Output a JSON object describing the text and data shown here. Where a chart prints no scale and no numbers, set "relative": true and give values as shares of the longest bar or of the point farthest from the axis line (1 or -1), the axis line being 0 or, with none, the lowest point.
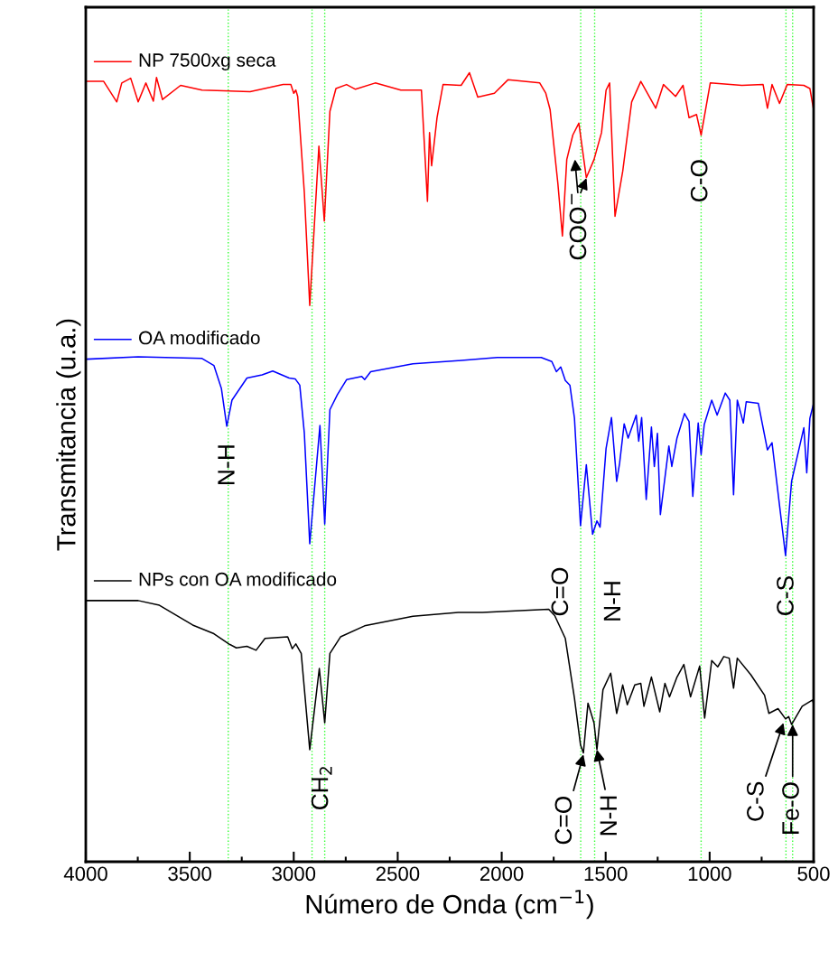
{
  "chart_data": {
    "type": "line",
    "relative": true,
    "xlabel": "Número de Onda (cm$^{−1}$)",
    "ylabel": "Transmitancia (u.a.)",
    "xlim": [
      4000,
      500
    ],
    "xticks": [
      4000,
      3500,
      3000,
      2500,
      2000,
      1500,
      1000,
      500
    ],
    "tick_labels": "x",
    "grid": false,
    "legend": "top left",
    "marker": "none",
    "line_style": "solid",
    "series": [
      {
        "name": "NP 7500xg seca",
        "color": "#ff0000",
        "x": [
          3994,
          3914,
          3851,
          3827,
          3784,
          3748,
          3711,
          3675,
          3660,
          3631,
          3544,
          3441,
          3210,
          3051,
          3014,
          3000,
          2990,
          2981,
          2949,
          2923,
          2879,
          2853,
          2826,
          2797,
          2746,
          2703,
          2608,
          2485,
          2386,
          2357,
          2347,
          2337,
          2311,
          2282,
          2195,
          2155,
          2115,
          2035,
          1970,
          1817,
          1788,
          1767,
          1730,
          1708,
          1687,
          1658,
          1629,
          1593,
          1556,
          1520,
          1498,
          1481,
          1455,
          1418,
          1375,
          1331,
          1259,
          1222,
          1164,
          1128,
          1099,
          1063,
          1041,
          997,
          845,
          743,
          722,
          700,
          664,
          627,
          547,
          518,
          500
        ],
        "values": [
          0.989,
          0.989,
          0.963,
          0.987,
          0.993,
          0.963,
          0.987,
          0.964,
          0.994,
          0.966,
          0.984,
          0.978,
          0.976,
          0.985,
          0.985,
          0.974,
          0.978,
          0.97,
          0.848,
          0.705,
          0.907,
          0.812,
          0.951,
          0.98,
          0.985,
          0.979,
          0.987,
          0.978,
          0.978,
          0.837,
          0.924,
          0.882,
          0.943,
          0.985,
          0.984,
          1.0,
          0.969,
          0.974,
          0.991,
          0.987,
          0.974,
          0.953,
          0.86,
          0.793,
          0.89,
          0.921,
          0.936,
          0.867,
          0.89,
          0.924,
          0.978,
          0.987,
          0.818,
          0.875,
          0.963,
          0.989,
          0.955,
          0.985,
          0.97,
          0.984,
          0.943,
          0.947,
          0.921,
          0.987,
          0.984,
          0.985,
          0.955,
          0.985,
          0.961,
          0.985,
          0.984,
          0.98,
          0.953
        ]
      },
      {
        "name": "OA modificado",
        "color": "#0000ff",
        "x": [
          3994,
          3748,
          3443,
          3384,
          3348,
          3322,
          3297,
          3225,
          3152,
          3101,
          3022,
          2993,
          2971,
          2949,
          2923,
          2874,
          2851,
          2826,
          2790,
          2746,
          2673,
          2659,
          2630,
          2427,
          2209,
          2021,
          1810,
          1759,
          1737,
          1716,
          1694,
          1672,
          1650,
          1621,
          1593,
          1563,
          1542,
          1527,
          1498,
          1472,
          1447,
          1433,
          1411,
          1392,
          1353,
          1341,
          1327,
          1305,
          1280,
          1266,
          1251,
          1237,
          1196,
          1182,
          1157,
          1121,
          1099,
          1081,
          1055,
          1041,
          1026,
          990,
          964,
          925,
          903,
          885,
          867,
          838,
          824,
          766,
          722,
          700,
          635,
          606,
          547,
          533,
          518,
          500
        ],
        "values": [
          0.637,
          0.64,
          0.638,
          0.629,
          0.6,
          0.552,
          0.585,
          0.613,
          0.617,
          0.622,
          0.613,
          0.612,
          0.604,
          0.543,
          0.403,
          0.553,
          0.428,
          0.573,
          0.592,
          0.611,
          0.615,
          0.611,
          0.621,
          0.631,
          0.635,
          0.639,
          0.639,
          0.634,
          0.621,
          0.627,
          0.61,
          0.604,
          0.562,
          0.426,
          0.503,
          0.415,
          0.432,
          0.424,
          0.524,
          0.563,
          0.482,
          0.505,
          0.555,
          0.537,
          0.566,
          0.533,
          0.563,
          0.459,
          0.551,
          0.501,
          0.543,
          0.44,
          0.527,
          0.501,
          0.537,
          0.568,
          0.558,
          0.463,
          0.556,
          0.516,
          0.554,
          0.585,
          0.566,
          0.594,
          0.585,
          0.465,
          0.585,
          0.556,
          0.583,
          0.581,
          0.522,
          0.531,
          0.388,
          0.482,
          0.55,
          0.493,
          0.562,
          0.581
        ]
      },
      {
        "name": "NPs con OA modificado",
        "color": "#000000",
        "x": [
          3994,
          3748,
          3646,
          3486,
          3384,
          3312,
          3276,
          3225,
          3181,
          3138,
          3029,
          3007,
          2990,
          2964,
          2923,
          2877,
          2851,
          2826,
          2775,
          2659,
          2427,
          2209,
          2093,
          1774,
          1745,
          1694,
          1650,
          1621,
          1607,
          1585,
          1556,
          1542,
          1513,
          1476,
          1447,
          1418,
          1396,
          1360,
          1331,
          1316,
          1280,
          1240,
          1215,
          1193,
          1157,
          1124,
          1092,
          1048,
          1024,
          990,
          961,
          932,
          906,
          885,
          867,
          802,
          736,
          715,
          671,
          635,
          620,
          606,
          555,
          505,
          500
        ],
        "values": [
          0.331,
          0.331,
          0.325,
          0.3,
          0.289,
          0.276,
          0.271,
          0.273,
          0.268,
          0.283,
          0.285,
          0.27,
          0.276,
          0.264,
          0.142,
          0.245,
          0.176,
          0.264,
          0.285,
          0.299,
          0.311,
          0.316,
          0.316,
          0.32,
          0.312,
          0.283,
          0.207,
          0.148,
          0.138,
          0.201,
          0.176,
          0.142,
          0.218,
          0.239,
          0.188,
          0.224,
          0.199,
          0.224,
          0.226,
          0.197,
          0.234,
          0.19,
          0.226,
          0.209,
          0.234,
          0.25,
          0.209,
          0.248,
          0.182,
          0.255,
          0.247,
          0.26,
          0.258,
          0.22,
          0.258,
          0.237,
          0.211,
          0.188,
          0.194,
          0.181,
          0.184,
          0.174,
          0.197,
          0.205,
          0.2
        ]
      }
    ],
    "ref_lines": [
      {
        "axis": "x",
        "value": 3315,
        "color": "#33ff33",
        "line_style": "dotted"
      },
      {
        "axis": "x",
        "value": 2912,
        "color": "#33ff33",
        "line_style": "dotted"
      },
      {
        "axis": "x",
        "value": 2851,
        "color": "#33ff33",
        "line_style": "dotted"
      },
      {
        "axis": "x",
        "value": 1620,
        "color": "#33ff33",
        "line_style": "dotted"
      },
      {
        "axis": "x",
        "value": 1553,
        "color": "#33ff33",
        "line_style": "dotted"
      },
      {
        "axis": "x",
        "value": 1041,
        "color": "#33ff33",
        "line_style": "dotted"
      },
      {
        "axis": "x",
        "value": 633,
        "color": "#33ff33",
        "line_style": "dotted"
      },
      {
        "axis": "x",
        "value": 601,
        "color": "#33ff33",
        "line_style": "dotted"
      }
    ],
    "annotations": [
      "COO$^{−}$",
      {
        "text": "C-O",
        "x": 1041,
        "y": 0.863
      },
      {
        "text": "N-H",
        "x": 3315,
        "y": 0.503
      },
      "C=O",
      "N-H",
      {
        "text": "C-S",
        "x": 627,
        "y": 0.337
      },
      {
        "text": "CH$_{2}$",
        "x": 2865,
        "y": 0.094
      },
      {
        "text": "C=O",
        "x": 1607,
        "y": 0.136
      },
      {
        "text": "N-H",
        "x": 1542,
        "y": 0.142
      },
      {
        "text": "C-S",
        "x": 645,
        "y": 0.176
      },
      {
        "text": "Fe-O",
        "x": 601,
        "y": 0.174
      }
    ]
  }
}
